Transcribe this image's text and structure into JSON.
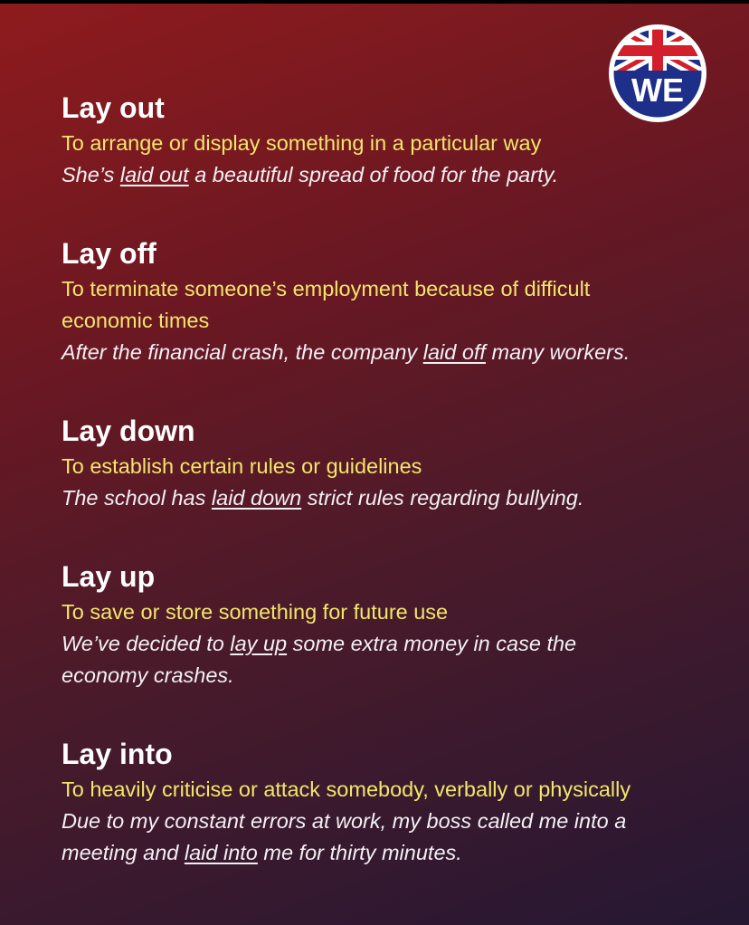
{
  "logo": {
    "text": "WE",
    "icon": "union-jack-badge"
  },
  "colors": {
    "term": "#ffffff",
    "definition": "#f2e66b",
    "example": "#f3f0f4",
    "background_top": "#8e1b1d",
    "background_bottom": "#251833"
  },
  "entries": [
    {
      "term": "Lay out",
      "definition": "To arrange or display something in a particular way",
      "example_before": "She’s ",
      "example_phrase": "laid out",
      "example_after": " a beautiful spread of food for the party."
    },
    {
      "term": "Lay off",
      "definition": "To terminate someone’s employment because of difficult economic times",
      "example_before": "After the financial crash, the company ",
      "example_phrase": "laid off",
      "example_after": " many workers."
    },
    {
      "term": "Lay down",
      "definition": "To establish certain rules or guidelines",
      "example_before": "The school has ",
      "example_phrase": "laid down",
      "example_after": " strict rules regarding bullying."
    },
    {
      "term": "Lay up",
      "definition": "To save or store something for future use",
      "example_before": "We’ve decided to ",
      "example_phrase": "lay up",
      "example_after": " some extra money in case the economy crashes."
    },
    {
      "term": "Lay into",
      "definition": "To heavily criticise or attack somebody, verbally or physically",
      "example_before": "Due to my constant errors at work, my boss called me into a meeting and ",
      "example_phrase": "laid into",
      "example_after": " me for thirty minutes."
    }
  ]
}
